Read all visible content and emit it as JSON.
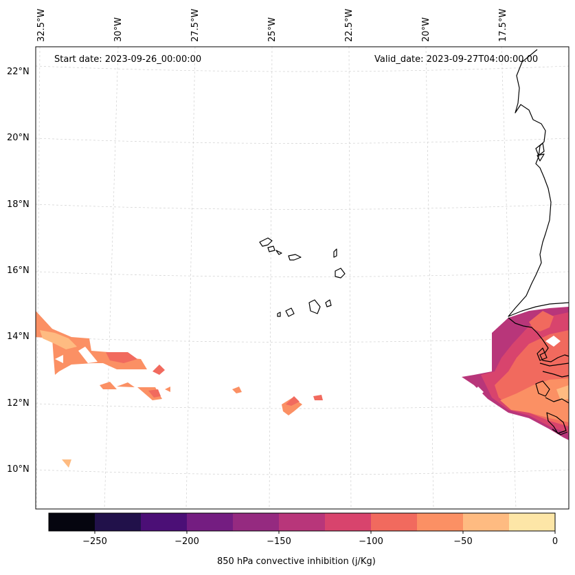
{
  "start_date_text": "Start date: 2023-09-26_00:00:00",
  "valid_date_text": "Valid_date: 2023-09-27T04:00:00.00",
  "lon_labels": [
    "32.5°W",
    "30°W",
    "27.5°W",
    "25°W",
    "22.5°W",
    "20°W",
    "17.5°W"
  ],
  "lat_labels": [
    "22°N",
    "20°N",
    "18°N",
    "16°N",
    "14°N",
    "12°N",
    "10°N"
  ],
  "colorbar": {
    "label": "850 hPa convective inhibition (j/Kg)",
    "ticks": [
      "−250",
      "−200",
      "−150",
      "−100",
      "−50",
      "0"
    ],
    "levels": [
      -275,
      -250,
      -225,
      -200,
      -175,
      -150,
      -125,
      -100,
      -75,
      -50,
      -25,
      0
    ],
    "colors": [
      "#05050f",
      "#21114a",
      "#4b0f76",
      "#741d81",
      "#952a80",
      "#b8367a",
      "#d8446d",
      "#f16a5e",
      "#fb9064",
      "#febb81",
      "#fde6a7"
    ]
  },
  "field_colors": {
    "c_m125": "#d8446d",
    "c_m100": "#f16a5e",
    "c_m75": "#fb9064",
    "c_m50": "#febb81",
    "c_m150": "#b8367a"
  }
}
